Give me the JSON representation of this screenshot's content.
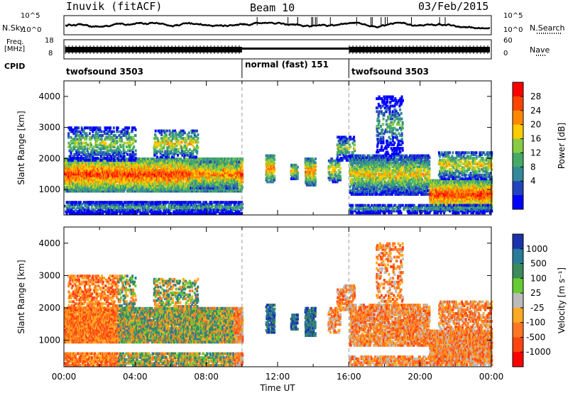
{
  "header": {
    "station": "Inuvik (fitACF)",
    "beam": "Beam 10",
    "date": "03/Feb/2015"
  },
  "top_panels": {
    "nsky_label": "N.Sky",
    "nsky_ticks": [
      "10^5",
      "10^0"
    ],
    "nsearch_label": "N.Search",
    "nsearch_ticks": [
      "10^5",
      "10^0"
    ],
    "freq_label": "Freq.",
    "freq_unit": "[MHz]",
    "freq_ticks": [
      "18",
      "8"
    ],
    "nave_label": "Nave",
    "nave_ticks": [
      "60",
      "0"
    ],
    "cpid_label": "CPID",
    "cpid_segments": [
      {
        "name": "twofsound 3503",
        "start": 0,
        "end": 10
      },
      {
        "name": "normal (fast) 151",
        "start": 10,
        "end": 16
      },
      {
        "name": "twofsound 3503",
        "start": 16,
        "end": 24
      }
    ]
  },
  "chart_data": [
    {
      "type": "heatmap",
      "title": "Power",
      "ylabel": "Slant Range [km]",
      "ylim": [
        180,
        4500
      ],
      "yticks": [
        "4000",
        "3000",
        "2000",
        "1000"
      ],
      "xlim": [
        0,
        24
      ],
      "colorbar_label": "Power [dB]",
      "colorbar_ticks": [
        "28",
        "24",
        "20",
        "16",
        "12",
        "8",
        "4"
      ],
      "colors": [
        "#ff0000",
        "#ff4400",
        "#ff8800",
        "#ffcc00",
        "#88cc44",
        "#44aa66",
        "#338899",
        "#2244bb",
        "#0000ff"
      ]
    },
    {
      "type": "heatmap",
      "title": "Velocity",
      "ylabel": "Slant Range [km]",
      "ylim": [
        180,
        4500
      ],
      "yticks": [
        "4000",
        "3000",
        "2000",
        "1000"
      ],
      "xlim": [
        0,
        24
      ],
      "xticks": [
        "00:00",
        "04:00",
        "08:00",
        "12:00",
        "16:00",
        "20:00",
        "00:00"
      ],
      "xlabel": "Time UT",
      "colorbar_label": "Velocity [m s⁻¹]",
      "colorbar_ticks": [
        "1000",
        "500",
        "100",
        "25",
        "-25",
        "-100",
        "-500",
        "-1000"
      ],
      "colors": [
        "#1a33aa",
        "#2a7a9a",
        "#3a8a5a",
        "#66cc33",
        "#bbbbbb",
        "#ffaa22",
        "#ff7722",
        "#ff4411",
        "#ff0000"
      ]
    }
  ]
}
